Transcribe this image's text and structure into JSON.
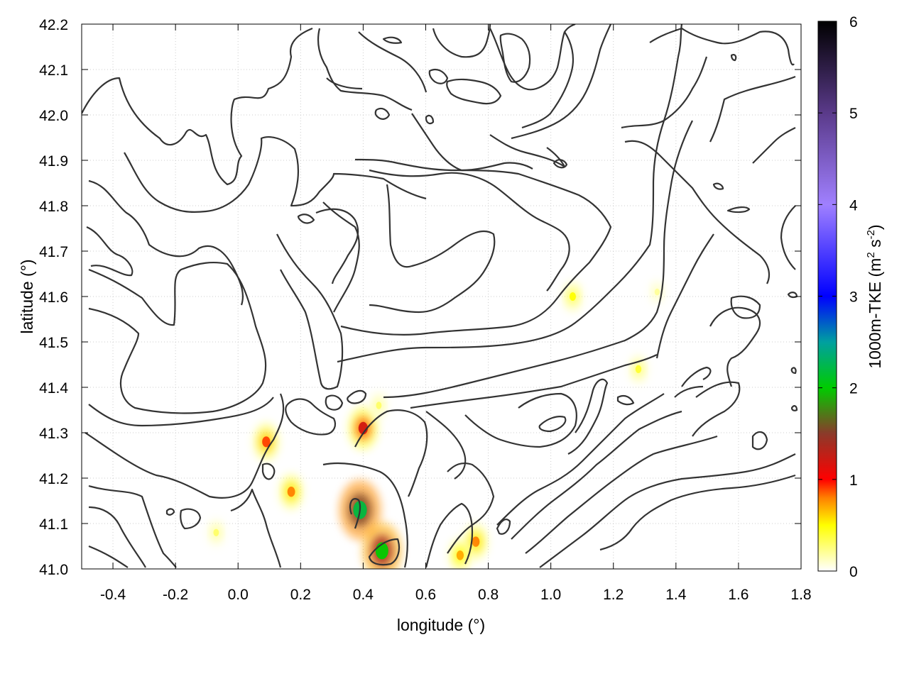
{
  "chart_data": {
    "type": "heatmap",
    "title": "",
    "xlabel": "longitude (°)",
    "ylabel": "latitude (°)",
    "xlim": [
      -0.5,
      1.8
    ],
    "ylim": [
      41.0,
      42.2
    ],
    "x_ticks": [
      "-0.4",
      "-0.2",
      "0.0",
      "0.2",
      "0.4",
      "0.6",
      "0.8",
      "1.0",
      "1.2",
      "1.4",
      "1.6",
      "1.8"
    ],
    "x_tick_values": [
      -0.4,
      -0.2,
      0.0,
      0.2,
      0.4,
      0.6,
      0.8,
      1.0,
      1.2,
      1.4,
      1.6,
      1.8
    ],
    "y_ticks": [
      "41.0",
      "41.1",
      "41.2",
      "41.3",
      "41.4",
      "41.5",
      "41.6",
      "41.7",
      "41.8",
      "41.9",
      "42.0",
      "42.1",
      "42.2"
    ],
    "y_tick_values": [
      41.0,
      41.1,
      41.2,
      41.3,
      41.4,
      41.5,
      41.6,
      41.7,
      41.8,
      41.9,
      42.0,
      42.1,
      42.2
    ],
    "grid": true,
    "colorbar": {
      "label_main": "1000m-TKE (m",
      "label_sup1": "2",
      "label_mid": " s",
      "label_sup2": "-2",
      "label_end": ")",
      "range": [
        0,
        6
      ],
      "ticks": [
        "0",
        "1",
        "2",
        "3",
        "4",
        "5",
        "6"
      ],
      "tick_values": [
        0,
        1,
        2,
        3,
        4,
        5,
        6
      ],
      "stops": [
        {
          "value": 0,
          "color": "#ffffff"
        },
        {
          "value": 0.5,
          "color": "#ffff00"
        },
        {
          "value": 0.8,
          "color": "#ff8000"
        },
        {
          "value": 1.0,
          "color": "#ff0000"
        },
        {
          "value": 1.5,
          "color": "#8b3a2a"
        },
        {
          "value": 2.0,
          "color": "#00cc00"
        },
        {
          "value": 2.5,
          "color": "#00a0a0"
        },
        {
          "value": 3.0,
          "color": "#0000ff"
        },
        {
          "value": 4.0,
          "color": "#a080ff"
        },
        {
          "value": 5.0,
          "color": "#5a3a8a"
        },
        {
          "value": 6.0,
          "color": "#000000"
        }
      ]
    },
    "hotspots": [
      {
        "lon": 0.39,
        "lat": 41.13,
        "value": 2.2
      },
      {
        "lon": 0.46,
        "lat": 41.04,
        "value": 2.0
      },
      {
        "lon": 0.4,
        "lat": 41.31,
        "value": 1.2
      },
      {
        "lon": 0.09,
        "lat": 41.28,
        "value": 0.9
      },
      {
        "lon": 0.17,
        "lat": 41.17,
        "value": 0.8
      },
      {
        "lon": 0.76,
        "lat": 41.06,
        "value": 0.8
      },
      {
        "lon": 0.71,
        "lat": 41.03,
        "value": 0.7
      },
      {
        "lon": 1.07,
        "lat": 41.6,
        "value": 0.5
      },
      {
        "lon": 1.28,
        "lat": 41.44,
        "value": 0.4
      },
      {
        "lon": 1.34,
        "lat": 41.61,
        "value": 0.2
      },
      {
        "lon": 0.45,
        "lat": 41.36,
        "value": 0.3
      },
      {
        "lon": -0.07,
        "lat": 41.08,
        "value": 0.3
      }
    ],
    "contour_color": "#333333"
  }
}
